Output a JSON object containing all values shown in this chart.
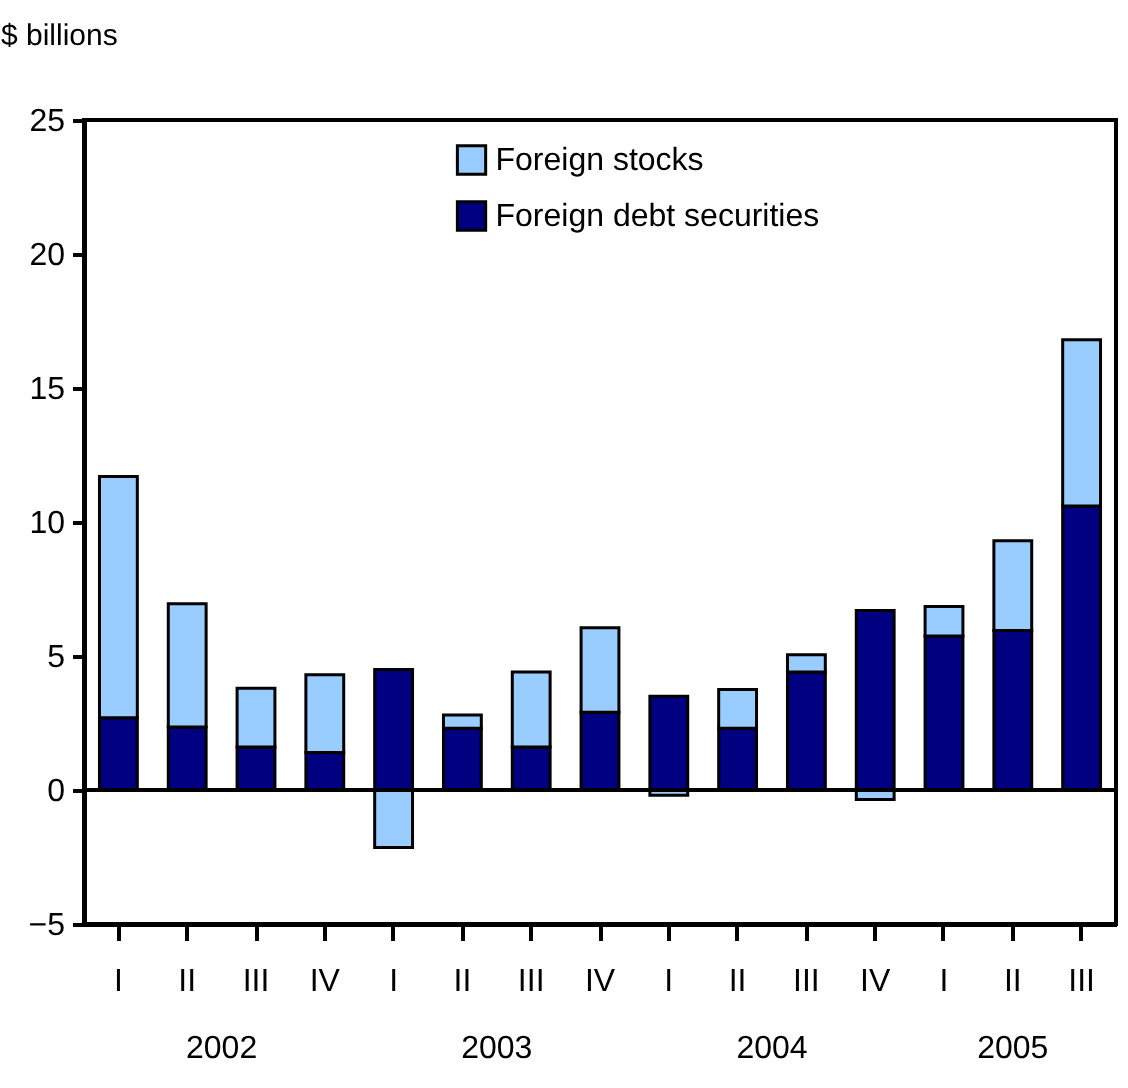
{
  "chart_data": {
    "type": "bar",
    "stacked": true,
    "ylabel": "$ billions",
    "categories": [
      "I",
      "II",
      "III",
      "IV",
      "I",
      "II",
      "III",
      "IV",
      "I",
      "II",
      "III",
      "IV",
      "I",
      "II",
      "III"
    ],
    "annotations": [
      "2002",
      "2003",
      "2004",
      "2005"
    ],
    "series": [
      {
        "name": "Foreign debt securities",
        "color": "#000080",
        "values": [
          2.7,
          2.35,
          1.6,
          1.4,
          4.5,
          2.3,
          1.6,
          2.9,
          3.5,
          2.3,
          4.4,
          6.7,
          5.75,
          5.95,
          10.6
        ]
      },
      {
        "name": "Foreign stocks",
        "color": "#99ccff",
        "values": [
          9.0,
          4.6,
          2.2,
          2.9,
          -2.15,
          0.5,
          2.8,
          3.15,
          -0.2,
          1.45,
          0.65,
          -0.35,
          1.1,
          3.35,
          6.2
        ]
      }
    ],
    "ylim": [
      -5,
      25
    ],
    "yticks": [
      -5,
      0,
      5,
      10,
      15,
      20,
      25
    ],
    "ref_lines": [
      {
        "axis": "y",
        "value": 0
      }
    ],
    "legend": "top",
    "grid": false
  }
}
